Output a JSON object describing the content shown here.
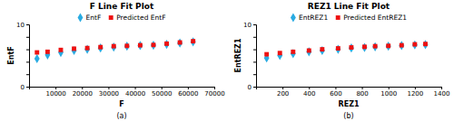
{
  "chart_data": [
    {
      "type": "scatter",
      "title": "F Line Fit  Plot",
      "x_label": "F",
      "y_label": "EntF",
      "annotation": "(a)",
      "legend": "top",
      "grid": false,
      "xlim": [
        0,
        70000
      ],
      "ylim": [
        0,
        10
      ],
      "xticks": [
        {
          "value": 0,
          "label": null
        },
        10000,
        20000,
        30000,
        40000,
        50000,
        60000,
        70000
      ],
      "yticks": [
        0,
        {
          "value": 2,
          "label": null
        },
        {
          "value": 4,
          "label": null
        },
        {
          "value": 6,
          "label": null
        },
        {
          "value": 8,
          "label": null
        },
        10
      ],
      "series": [
        {
          "name": "EntF",
          "color": "#29ABE2",
          "marker": "diamond",
          "x": [
            3000,
            7000,
            12000,
            17000,
            22000,
            27000,
            32000,
            37000,
            42000,
            47000,
            52000,
            57000,
            62000
          ],
          "values": [
            4.5,
            5.1,
            5.5,
            5.8,
            6.0,
            6.2,
            6.35,
            6.5,
            6.6,
            6.65,
            6.8,
            7.0,
            7.2
          ]
        },
        {
          "name": "Predicted EntF",
          "color": "#EE1111",
          "marker": "square",
          "x": [
            3000,
            7000,
            12000,
            17000,
            22000,
            27000,
            32000,
            37000,
            42000,
            47000,
            52000,
            57000,
            62000
          ],
          "values": [
            5.5,
            5.6,
            5.9,
            6.1,
            6.2,
            6.35,
            6.5,
            6.55,
            6.65,
            6.7,
            6.9,
            7.1,
            7.3
          ]
        }
      ]
    },
    {
      "type": "scatter",
      "title": "REZ1 Line Fit  Plot",
      "x_label": "REZ1",
      "y_label": "EntREZ1",
      "annotation": "(b)",
      "legend": "top",
      "grid": false,
      "xlim": [
        0,
        1400
      ],
      "ylim": [
        0,
        10
      ],
      "xticks": [
        {
          "value": 0,
          "label": null
        },
        200,
        400,
        600,
        800,
        1000,
        1200,
        1400
      ],
      "yticks": [
        0,
        {
          "value": 2,
          "label": null
        },
        {
          "value": 4,
          "label": null
        },
        {
          "value": 6,
          "label": null
        },
        {
          "value": 8,
          "label": null
        },
        10
      ],
      "series": [
        {
          "name": "EntREZ1",
          "color": "#29ABE2",
          "marker": "diamond",
          "x": [
            80,
            180,
            280,
            400,
            500,
            620,
            720,
            820,
            900,
            1000,
            1100,
            1200,
            1280
          ],
          "values": [
            4.6,
            5.0,
            5.3,
            5.6,
            5.8,
            6.0,
            6.2,
            6.3,
            6.4,
            6.5,
            6.6,
            6.7,
            6.75
          ]
        },
        {
          "name": "Predicted EntREZ1",
          "color": "#EE1111",
          "marker": "square",
          "x": [
            80,
            180,
            280,
            400,
            500,
            620,
            720,
            820,
            900,
            1000,
            1100,
            1200,
            1280
          ],
          "values": [
            5.2,
            5.4,
            5.6,
            5.8,
            6.0,
            6.15,
            6.3,
            6.4,
            6.5,
            6.55,
            6.65,
            6.8,
            6.85
          ]
        }
      ]
    }
  ]
}
